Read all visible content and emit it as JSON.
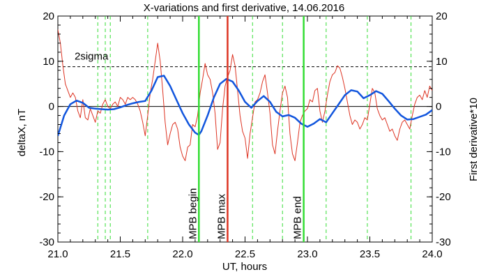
{
  "chart_data": {
    "type": "line",
    "title": "X-variations and first derivative, 14.06.2016",
    "xlabel": "UT, hours",
    "ylabel_left": "deltaX, nT",
    "ylabel_right": "First derivative*10",
    "xlim": [
      21.0,
      24.0
    ],
    "ylim": [
      -30,
      20
    ],
    "x_ticks": [
      21.0,
      21.5,
      22.0,
      22.5,
      23.0,
      23.5,
      24.0
    ],
    "x_tick_labels": [
      "21.0",
      "21.5",
      "22.0",
      "22.5",
      "23.0",
      "23.5",
      "24.0"
    ],
    "y_ticks": [
      -30,
      -20,
      -10,
      0,
      10,
      20
    ],
    "y_tick_labels": [
      "-30",
      "-20",
      "-10",
      "0",
      "10",
      "20"
    ],
    "threshold": {
      "label": "2sigma",
      "value": 8.8
    },
    "dashed_vlines": [
      21.32,
      21.38,
      21.42,
      21.72,
      22.56,
      22.8,
      23.15,
      23.48,
      23.83
    ],
    "markers": [
      {
        "x": 22.13,
        "label": "MPB begin",
        "color": "#33dd33"
      },
      {
        "x": 22.36,
        "label": "MPB max",
        "color": "#dd3322"
      },
      {
        "x": 22.97,
        "label": "MPB end",
        "color": "#33dd33"
      }
    ],
    "colors": {
      "deltaX": "#1155dd",
      "derivative": "#dd3322",
      "marker_green": "#33dd33"
    },
    "series": [
      {
        "name": "deltaX, nT",
        "x": [
          21.0,
          21.05,
          21.1,
          21.15,
          21.2,
          21.25,
          21.3,
          21.35,
          21.4,
          21.45,
          21.5,
          21.55,
          21.6,
          21.65,
          21.7,
          21.75,
          21.8,
          21.85,
          21.9,
          21.95,
          22.0,
          22.05,
          22.1,
          22.13,
          22.15,
          22.2,
          22.25,
          22.3,
          22.35,
          22.4,
          22.45,
          22.5,
          22.55,
          22.6,
          22.65,
          22.7,
          22.75,
          22.8,
          22.85,
          22.9,
          22.95,
          23.0,
          23.05,
          23.1,
          23.15,
          23.2,
          23.25,
          23.3,
          23.35,
          23.4,
          23.45,
          23.5,
          23.55,
          23.6,
          23.65,
          23.7,
          23.75,
          23.8,
          23.85,
          23.9,
          23.95,
          24.0
        ],
        "y": [
          -6.5,
          -2.0,
          0.5,
          1.3,
          0.8,
          -0.3,
          -0.5,
          -0.6,
          -0.7,
          -0.6,
          -0.2,
          0.3,
          0.7,
          1.0,
          1.2,
          3.5,
          6.5,
          6.8,
          4.5,
          1.5,
          -1.5,
          -4.0,
          -5.8,
          -6.3,
          -5.5,
          -2.0,
          2.0,
          5.0,
          6.1,
          5.5,
          3.5,
          1.0,
          -0.3,
          1.2,
          2.3,
          1.0,
          -1.2,
          -2.2,
          -1.9,
          -2.5,
          -3.8,
          -4.5,
          -3.8,
          -2.8,
          -3.5,
          -1.5,
          0.5,
          2.5,
          3.6,
          3.3,
          1.8,
          2.5,
          3.4,
          2.8,
          1.2,
          -0.5,
          -2.0,
          -2.9,
          -2.8,
          -2.3,
          -1.8,
          -0.8
        ]
      },
      {
        "name": "First derivative*10",
        "x": [
          21.0,
          21.02,
          21.04,
          21.06,
          21.08,
          21.1,
          21.12,
          21.14,
          21.16,
          21.18,
          21.2,
          21.22,
          21.24,
          21.26,
          21.28,
          21.3,
          21.32,
          21.34,
          21.36,
          21.38,
          21.4,
          21.42,
          21.44,
          21.46,
          21.48,
          21.5,
          21.52,
          21.54,
          21.56,
          21.58,
          21.6,
          21.62,
          21.64,
          21.66,
          21.68,
          21.7,
          21.72,
          21.74,
          21.76,
          21.78,
          21.8,
          21.82,
          21.84,
          21.86,
          21.88,
          21.9,
          21.92,
          21.94,
          21.96,
          21.98,
          22.0,
          22.02,
          22.04,
          22.06,
          22.08,
          22.1,
          22.12,
          22.14,
          22.16,
          22.18,
          22.2,
          22.22,
          22.24,
          22.26,
          22.28,
          22.3,
          22.32,
          22.34,
          22.36,
          22.38,
          22.4,
          22.42,
          22.44,
          22.46,
          22.48,
          22.5,
          22.52,
          22.54,
          22.56,
          22.58,
          22.6,
          22.62,
          22.64,
          22.66,
          22.68,
          22.7,
          22.72,
          22.74,
          22.76,
          22.78,
          22.8,
          22.82,
          22.84,
          22.86,
          22.88,
          22.9,
          22.92,
          22.94,
          22.96,
          22.98,
          23.0,
          23.02,
          23.04,
          23.06,
          23.08,
          23.1,
          23.12,
          23.14,
          23.16,
          23.18,
          23.2,
          23.22,
          23.24,
          23.26,
          23.28,
          23.3,
          23.32,
          23.34,
          23.36,
          23.38,
          23.4,
          23.42,
          23.44,
          23.46,
          23.48,
          23.5,
          23.52,
          23.54,
          23.56,
          23.58,
          23.6,
          23.62,
          23.64,
          23.66,
          23.68,
          23.7,
          23.72,
          23.74,
          23.76,
          23.78,
          23.8,
          23.82,
          23.84,
          23.86,
          23.88,
          23.9,
          23.92,
          23.94,
          23.96,
          23.98,
          24.0
        ],
        "y": [
          17.0,
          14.0,
          9.0,
          5.0,
          3.5,
          2.0,
          3.0,
          2.0,
          -1.0,
          -2.5,
          1.5,
          -2.5,
          -3.0,
          -0.5,
          -2.0,
          -3.5,
          -1.0,
          -1.5,
          0.5,
          1.5,
          0.0,
          -0.5,
          0.5,
          1.0,
          0.0,
          2.0,
          1.5,
          0.5,
          2.0,
          1.5,
          2.0,
          1.5,
          0.5,
          -1.0,
          -3.5,
          -6.5,
          -2.0,
          3.0,
          6.0,
          10.0,
          14.0,
          10.0,
          3.5,
          -3.5,
          -8.5,
          -6.0,
          -4.0,
          -3.5,
          -5.0,
          -9.0,
          -11.0,
          -12.0,
          -9.0,
          -8.5,
          -4.0,
          -4.5,
          -2.0,
          3.0,
          6.0,
          9.5,
          7.0,
          6.0,
          3.0,
          -1.5,
          -9.5,
          -8.0,
          -0.5,
          4.5,
          6.5,
          8.0,
          11.5,
          9.0,
          3.5,
          -2.0,
          -5.5,
          -7.0,
          -11.5,
          -6.0,
          -2.5,
          1.0,
          1.5,
          3.0,
          5.5,
          7.0,
          3.0,
          -1.5,
          -8.5,
          -10.5,
          -5.5,
          -1.0,
          3.0,
          4.5,
          2.0,
          -6.0,
          -10.5,
          -12.0,
          -8.0,
          -3.5,
          -2.0,
          -1.0,
          -0.5,
          1.5,
          1.0,
          3.5,
          4.0,
          -1.0,
          -3.5,
          -1.0,
          2.5,
          5.5,
          7.0,
          7.5,
          9.0,
          8.5,
          6.5,
          4.0,
          1.0,
          -2.0,
          -4.0,
          -3.0,
          -3.5,
          -5.0,
          -4.0,
          -2.5,
          -3.0,
          0.5,
          4.0,
          3.0,
          -0.5,
          -2.0,
          -3.0,
          -2.5,
          -4.0,
          -5.5,
          -5.0,
          -6.5,
          -7.5,
          -5.0,
          -3.5,
          -3.0,
          -4.0,
          -5.0,
          -2.0,
          0.5,
          2.0,
          2.5,
          1.5,
          3.5,
          2.0,
          4.5,
          3.5
        ]
      }
    ]
  }
}
